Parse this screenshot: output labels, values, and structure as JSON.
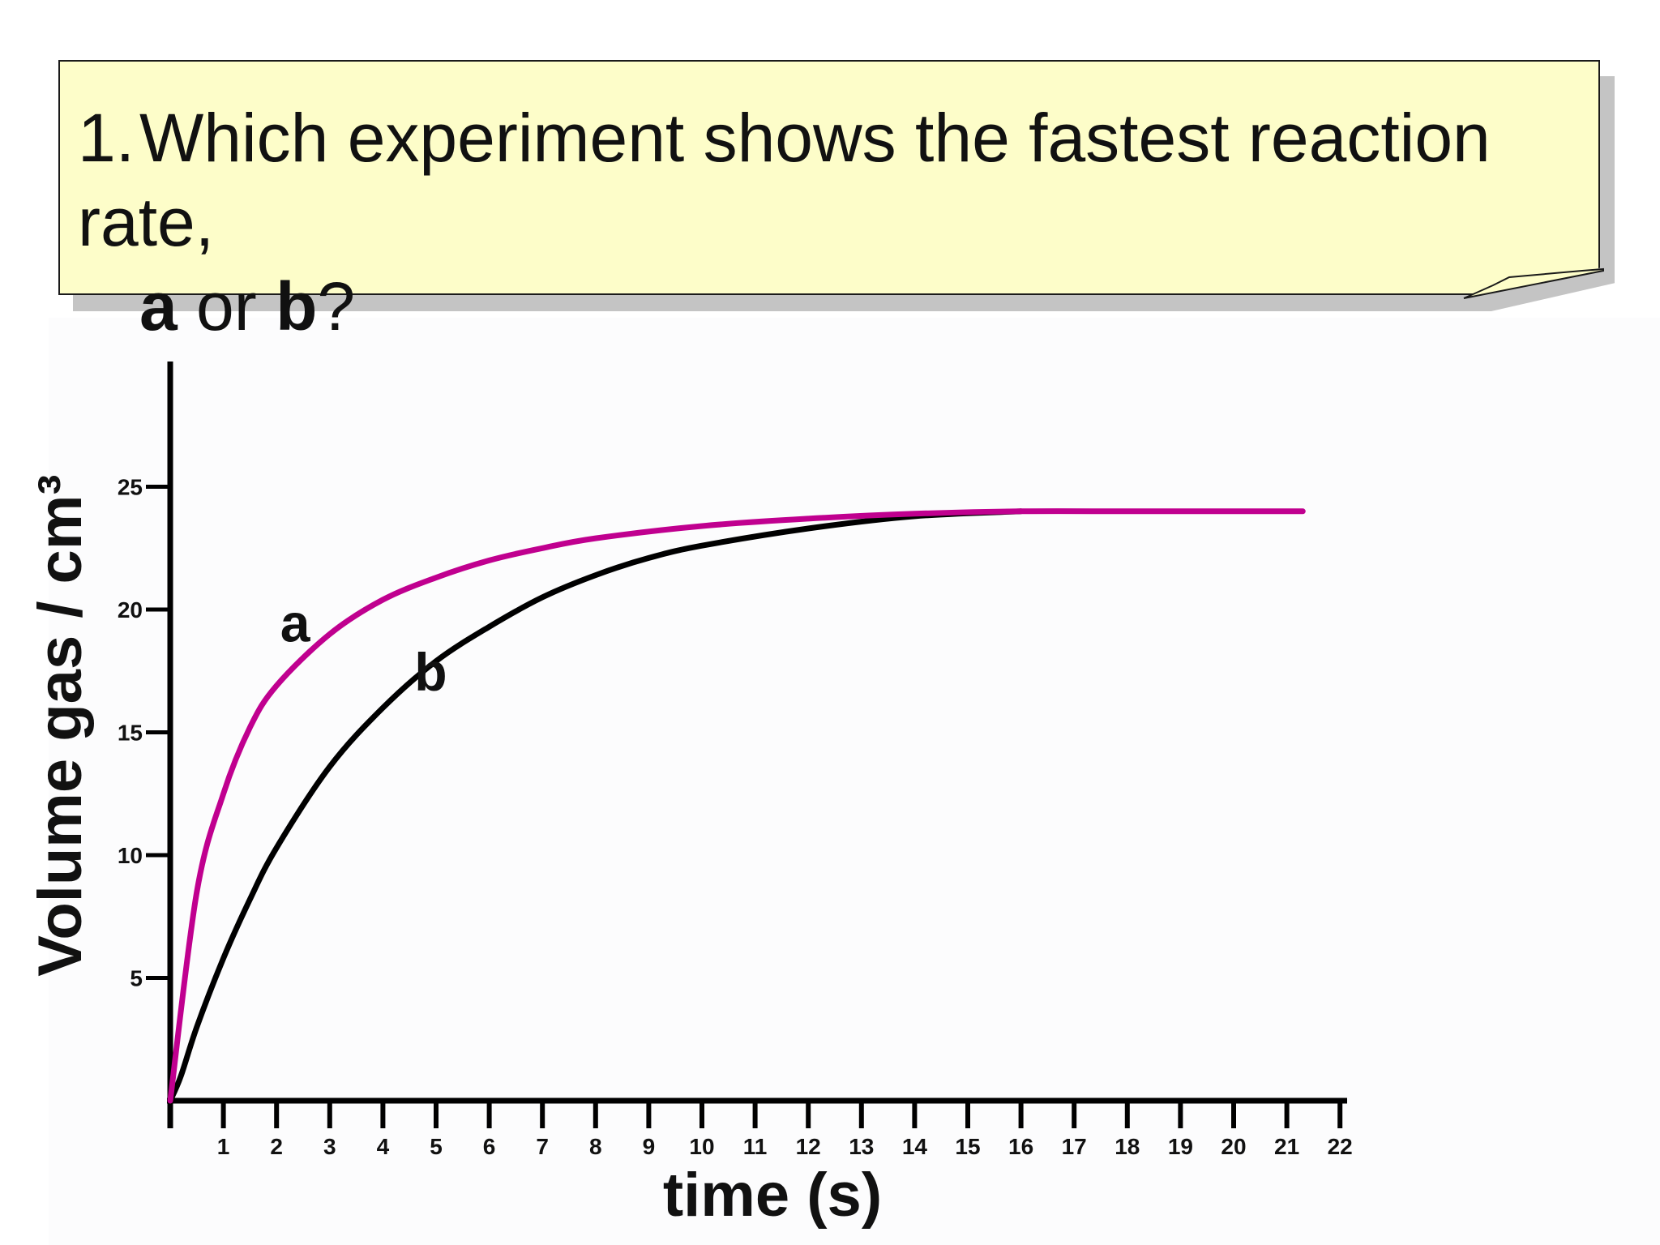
{
  "question": {
    "number": "1.",
    "text": "Which experiment shows the fastest reaction rate,",
    "opt_a": "a",
    "or_text": " or ",
    "opt_b": "b",
    "end": "?"
  },
  "colors": {
    "note_bg": "#fdfdc9",
    "series_a": "#c0008f",
    "series_b": "#000000"
  },
  "chart_data": {
    "type": "line",
    "title": "",
    "xlabel": "time (s)",
    "ylabel": "Volume gas / cm³",
    "xlim": [
      0,
      22
    ],
    "ylim": [
      0,
      29
    ],
    "x_ticks": [
      1,
      2,
      3,
      4,
      5,
      6,
      7,
      8,
      9,
      10,
      11,
      12,
      13,
      14,
      15,
      16,
      17,
      18,
      19,
      20,
      21,
      22
    ],
    "y_ticks": [
      5,
      10,
      15,
      20,
      25
    ],
    "grid": false,
    "series": [
      {
        "name": "a",
        "x": [
          0,
          0.5,
          1,
          1.5,
          2,
          3,
          4,
          5,
          6,
          7,
          8,
          10,
          12,
          14,
          16,
          18,
          20,
          21.3
        ],
        "y": [
          0,
          8.5,
          12.5,
          15.2,
          16.9,
          19.0,
          20.4,
          21.3,
          22.0,
          22.5,
          22.9,
          23.4,
          23.7,
          23.9,
          24.0,
          24.0,
          24.0,
          24.0
        ]
      },
      {
        "name": "b",
        "x": [
          0,
          0.2,
          0.5,
          1,
          1.5,
          2,
          3,
          4,
          5,
          6,
          7,
          8,
          9,
          10,
          12,
          14,
          16
        ],
        "y": [
          0,
          1.0,
          3.0,
          5.8,
          8.2,
          10.3,
          13.6,
          16.0,
          17.9,
          19.3,
          20.5,
          21.4,
          22.1,
          22.6,
          23.3,
          23.8,
          24.0
        ]
      }
    ]
  }
}
